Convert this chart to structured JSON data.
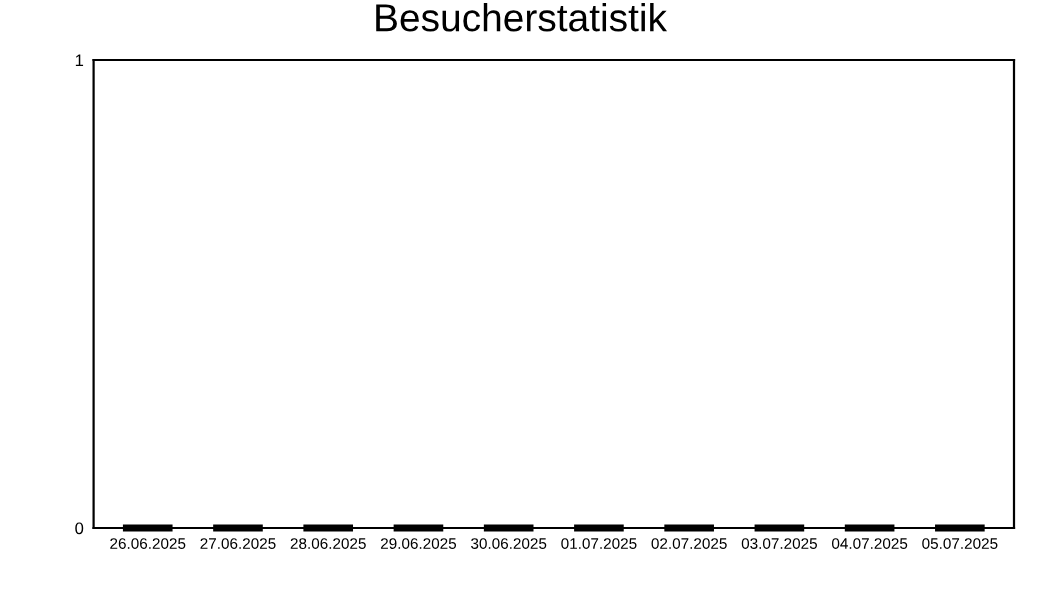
{
  "chart_data": {
    "type": "bar",
    "title": "Besucherstatistik",
    "categories": [
      "26.06.2025",
      "27.06.2025",
      "28.06.2025",
      "29.06.2025",
      "30.06.2025",
      "01.07.2025",
      "02.07.2025",
      "03.07.2025",
      "04.07.2025",
      "05.07.2025"
    ],
    "values": [
      0,
      0,
      0,
      0,
      0,
      0,
      0,
      0,
      0,
      0
    ],
    "color": "#000000",
    "ylim": [
      0,
      1
    ],
    "yticks": [
      0,
      1
    ],
    "grid": false
  }
}
